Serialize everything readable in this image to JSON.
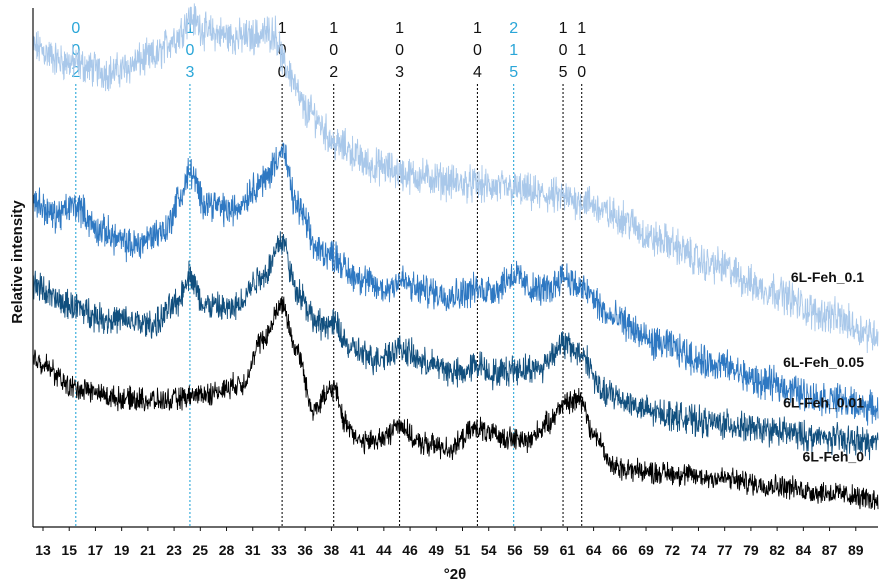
{
  "chart_data": {
    "type": "line",
    "xlabel": "°2θ",
    "ylabel": "Relative intensity",
    "xlim": [
      13,
      90
    ],
    "x_ticks": [
      13,
      15,
      17,
      19,
      21,
      23,
      25,
      28,
      31,
      33,
      36,
      38,
      41,
      44,
      46,
      49,
      51,
      54,
      56,
      59,
      61,
      64,
      66,
      69,
      72,
      74,
      77,
      79,
      82,
      84,
      87,
      89
    ],
    "y_ticks": "none",
    "grid": false,
    "colors": {
      "hkl_black": "#111111",
      "hkl_blue": "#2aa6d8"
    },
    "reflections": [
      {
        "hkl": [
          "0",
          "0",
          "2"
        ],
        "x": 16.9,
        "color": "blue"
      },
      {
        "hkl": [
          "1",
          "0",
          "3"
        ],
        "x": 27.3,
        "color": "blue"
      },
      {
        "hkl": [
          "1",
          "0",
          "0"
        ],
        "x": 35.7,
        "color": "black"
      },
      {
        "hkl": [
          "1",
          "0",
          "2"
        ],
        "x": 40.4,
        "color": "black"
      },
      {
        "hkl": [
          "1",
          "0",
          "3"
        ],
        "x": 46.4,
        "color": "black"
      },
      {
        "hkl": [
          "1",
          "0",
          "4"
        ],
        "x": 53.5,
        "color": "black"
      },
      {
        "hkl": [
          "2",
          "1",
          "5"
        ],
        "x": 56.8,
        "color": "blue"
      },
      {
        "hkl": [
          "1",
          "0",
          "5"
        ],
        "x": 61.3,
        "color": "black"
      },
      {
        "hkl": [
          "1",
          "1",
          "0"
        ],
        "x": 63.0,
        "color": "black"
      }
    ],
    "series": [
      {
        "name": "6L-Feh_0.1",
        "color": "#a9c8ea",
        "noise": 0.55,
        "points": [
          [
            13,
            9.2
          ],
          [
            16,
            8.9
          ],
          [
            20,
            8.7
          ],
          [
            24,
            9.0
          ],
          [
            26,
            9.4
          ],
          [
            27.3,
            9.8
          ],
          [
            29,
            9.5
          ],
          [
            32,
            9.4
          ],
          [
            35,
            9.5
          ],
          [
            36,
            8.8
          ],
          [
            38,
            7.9
          ],
          [
            41,
            7.2
          ],
          [
            44,
            6.8
          ],
          [
            48,
            6.6
          ],
          [
            52,
            6.45
          ],
          [
            56,
            6.35
          ],
          [
            60,
            6.2
          ],
          [
            63,
            6.1
          ],
          [
            66,
            5.8
          ],
          [
            70,
            5.3
          ],
          [
            75,
            4.8
          ],
          [
            80,
            4.3
          ],
          [
            85,
            3.8
          ],
          [
            90,
            3.4
          ]
        ]
      },
      {
        "name": "6L-Feh_0.05",
        "color": "#2e78c2",
        "noise": 0.5,
        "points": [
          [
            13,
            6.1
          ],
          [
            15,
            5.8
          ],
          [
            16.9,
            6.0
          ],
          [
            19,
            5.5
          ],
          [
            22,
            5.2
          ],
          [
            25,
            5.5
          ],
          [
            26.5,
            6.2
          ],
          [
            27.3,
            6.7
          ],
          [
            28.5,
            6.1
          ],
          [
            31,
            5.9
          ],
          [
            34,
            6.5
          ],
          [
            35.7,
            7.1
          ],
          [
            37,
            6.0
          ],
          [
            39,
            5.1
          ],
          [
            40.4,
            5.0
          ],
          [
            42,
            4.6
          ],
          [
            45,
            4.3
          ],
          [
            46.4,
            4.5
          ],
          [
            48,
            4.3
          ],
          [
            51,
            4.2
          ],
          [
            53.5,
            4.3
          ],
          [
            55,
            4.3
          ],
          [
            56.8,
            4.6
          ],
          [
            58.5,
            4.3
          ],
          [
            60,
            4.3
          ],
          [
            61.3,
            4.6
          ],
          [
            63,
            4.3
          ],
          [
            66,
            3.7
          ],
          [
            70,
            3.2
          ],
          [
            75,
            2.8
          ],
          [
            80,
            2.4
          ],
          [
            85,
            2.1
          ],
          [
            90,
            1.9
          ]
        ]
      },
      {
        "name": "6L-Feh_0.01",
        "color": "#114f7e",
        "noise": 0.45,
        "points": [
          [
            13,
            4.4
          ],
          [
            16,
            4.0
          ],
          [
            20,
            3.7
          ],
          [
            24,
            3.6
          ],
          [
            26,
            4.0
          ],
          [
            27.3,
            4.6
          ],
          [
            28.5,
            4.0
          ],
          [
            31,
            3.9
          ],
          [
            34,
            4.6
          ],
          [
            35.7,
            5.3
          ],
          [
            37,
            4.3
          ],
          [
            39,
            3.6
          ],
          [
            40.4,
            3.6
          ],
          [
            42,
            3.1
          ],
          [
            44,
            2.9
          ],
          [
            46.4,
            3.1
          ],
          [
            49,
            2.8
          ],
          [
            52,
            2.6
          ],
          [
            53.5,
            2.8
          ],
          [
            55,
            2.6
          ],
          [
            57,
            2.7
          ],
          [
            59,
            2.7
          ],
          [
            61.3,
            3.2
          ],
          [
            63,
            3.0
          ],
          [
            65,
            2.2
          ],
          [
            70,
            1.8
          ],
          [
            75,
            1.6
          ],
          [
            80,
            1.45
          ],
          [
            85,
            1.3
          ],
          [
            90,
            1.2
          ]
        ]
      },
      {
        "name": "6L-Feh_0",
        "color": "#000000",
        "noise": 0.35,
        "points": [
          [
            13,
            2.9
          ],
          [
            17,
            2.3
          ],
          [
            21,
            2.1
          ],
          [
            25,
            2.05
          ],
          [
            29,
            2.2
          ],
          [
            32,
            2.4
          ],
          [
            34,
            3.3
          ],
          [
            35.7,
            4.0
          ],
          [
            37,
            3.1
          ],
          [
            38.5,
            1.9
          ],
          [
            40.4,
            2.3
          ],
          [
            41.5,
            1.6
          ],
          [
            43,
            1.2
          ],
          [
            45,
            1.3
          ],
          [
            46.4,
            1.6
          ],
          [
            48,
            1.2
          ],
          [
            51,
            1.1
          ],
          [
            53.5,
            1.5
          ],
          [
            55,
            1.35
          ],
          [
            58,
            1.25
          ],
          [
            60,
            1.6
          ],
          [
            61.3,
            2.0
          ],
          [
            63,
            2.1
          ],
          [
            64,
            1.4
          ],
          [
            66,
            0.7
          ],
          [
            70,
            0.6
          ],
          [
            75,
            0.5
          ],
          [
            80,
            0.35
          ],
          [
            85,
            0.2
          ],
          [
            90,
            0.05
          ]
        ]
      }
    ]
  }
}
